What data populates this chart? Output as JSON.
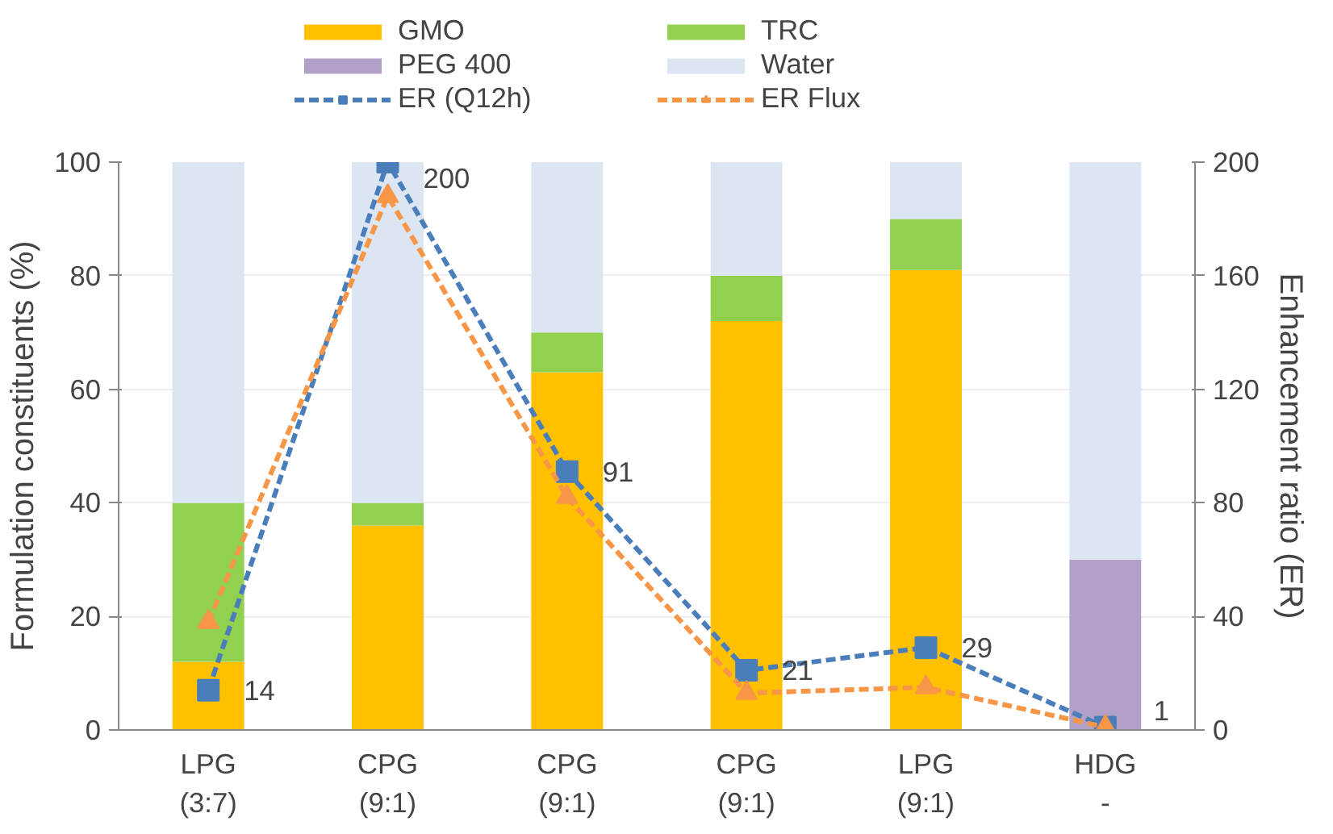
{
  "chart_data": {
    "type": "bar",
    "stacked": true,
    "categories": [
      "LPG\n(3:7)",
      "CPG\n(9:1)",
      "CPG\n(9:1)",
      "CPG\n(9:1)",
      "LPG\n(9:1)",
      "HDG\n-"
    ],
    "ylabel": "Formulation constituents (%)",
    "y2label": "Enhancement ratio (ER)",
    "ylim": [
      0,
      100
    ],
    "yticks": [
      0,
      20,
      40,
      60,
      80,
      100
    ],
    "y2lim": [
      0,
      200
    ],
    "y2ticks": [
      0,
      40,
      80,
      120,
      160,
      200
    ],
    "grid": "y",
    "legend": "top",
    "series": [
      {
        "name": "GMO",
        "color": "#ffc000",
        "values": [
          12,
          36,
          63,
          72,
          81,
          0
        ]
      },
      {
        "name": "TRC",
        "color": "#92d050",
        "values": [
          28,
          4,
          7,
          8,
          9,
          0
        ]
      },
      {
        "name": "PEG 400",
        "color": "#b1a0c7",
        "values": [
          0,
          0,
          0,
          0,
          0,
          30
        ]
      },
      {
        "name": "Water",
        "color": "#dce6f2",
        "values": [
          60,
          60,
          30,
          20,
          10,
          70
        ]
      },
      {
        "name": "ER (Q12h)",
        "type": "line",
        "axis": "y2",
        "color": "#4a7ebb",
        "marker": "square",
        "line_style": "dashed",
        "values": [
          14,
          200,
          91,
          21,
          29,
          1
        ],
        "value_labels": [
          "14",
          "200",
          "91",
          "21",
          "29",
          "1"
        ]
      },
      {
        "name": "ER Flux",
        "type": "line",
        "axis": "y2",
        "color": "#f79646",
        "marker": "triangle",
        "line_style": "dashed",
        "values": [
          38,
          188,
          82,
          13,
          15,
          1
        ]
      }
    ]
  }
}
